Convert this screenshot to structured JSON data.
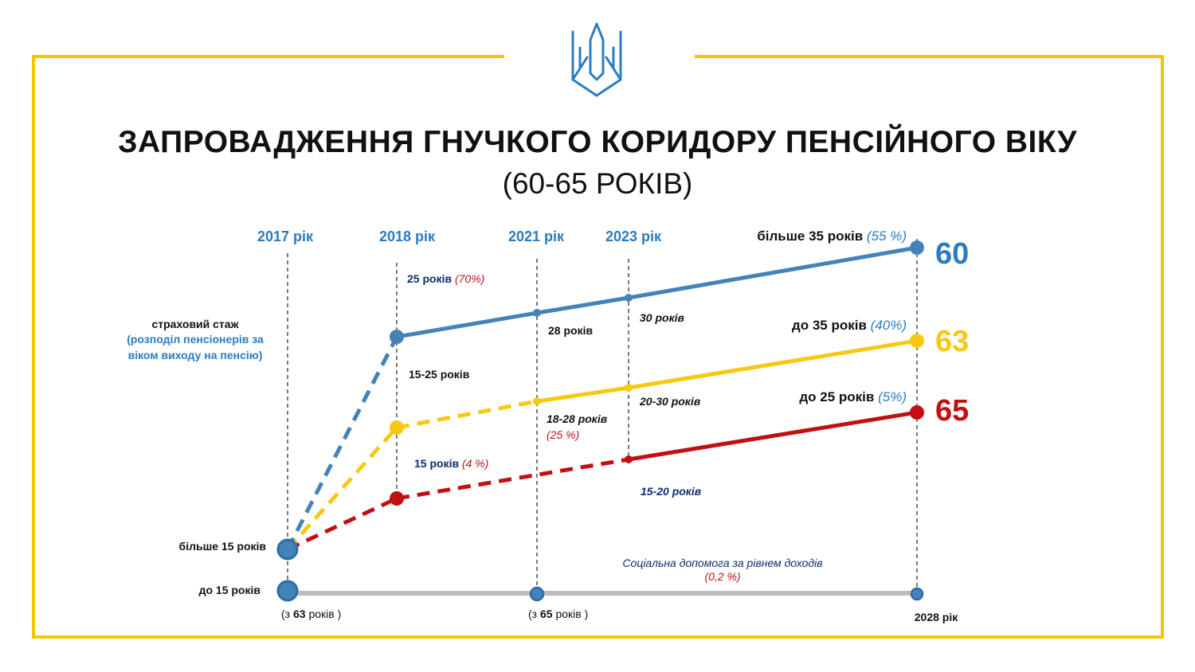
{
  "header": {
    "title": "ЗАПРОВАДЖЕННЯ ГНУЧКОГО КОРИДОРУ ПЕНСІЙНОГО ВІКУ",
    "subtitle": "(60-65 РОКІВ)",
    "emblem_icon": "trident-icon"
  },
  "colors": {
    "frame": "#F5C400",
    "blue": "#4383BA",
    "blue_dark": "#2F6BA4",
    "yellow": "#F8C813",
    "red": "#C10F12",
    "gray": "#BDBDBD",
    "navy": "#0E2D6E",
    "label_blue": "#2A7CC1"
  },
  "years": [
    {
      "label": "2017 рік",
      "year": 2017
    },
    {
      "label": "2018 рік",
      "year": 2018
    },
    {
      "label": "2021 рік",
      "year": 2021
    },
    {
      "label": "2023 рік",
      "year": 2023
    }
  ],
  "end_year_label": "2028 рік",
  "left_labels": {
    "insurance": "страховий стаж",
    "insurance_note": "(розподіл пенсіонерів за віком виходу на пенсію)",
    "more15": "більше 15 років",
    "upto15": "до 15 років"
  },
  "lines": [
    {
      "name": "60",
      "age": "60",
      "color_key": "blue",
      "end_label": "більше 35 років",
      "end_pct": "(55 %)",
      "points": [
        {
          "year": 2017,
          "label": "",
          "pct": ""
        },
        {
          "year": 2018,
          "label": "25 років",
          "pct": "(70%)"
        },
        {
          "year": 2021,
          "label": "28 років",
          "pct": ""
        },
        {
          "year": 2023,
          "label": "30 років",
          "pct": ""
        },
        {
          "year": 2028,
          "label": "",
          "pct": ""
        }
      ]
    },
    {
      "name": "63",
      "age": "63",
      "color_key": "yellow",
      "end_label": "до 35 років",
      "end_pct": "(40%)",
      "points": [
        {
          "year": 2017,
          "label": "",
          "pct": ""
        },
        {
          "year": 2018,
          "label": "15-25 років",
          "pct": ""
        },
        {
          "year": 2021,
          "label": "18-28 років",
          "pct": "(25 %)"
        },
        {
          "year": 2023,
          "label": "20-30 років",
          "pct": ""
        },
        {
          "year": 2028,
          "label": "",
          "pct": ""
        }
      ]
    },
    {
      "name": "65",
      "age": "65",
      "color_key": "red",
      "end_label": "до 25 років",
      "end_pct": "(5%)",
      "points": [
        {
          "year": 2017,
          "label": "",
          "pct": ""
        },
        {
          "year": 2018,
          "label": "15 років",
          "pct": "(4 %)"
        },
        {
          "year": 2023,
          "label": "15-20 років",
          "pct": ""
        },
        {
          "year": 2028,
          "label": "",
          "pct": ""
        }
      ]
    }
  ],
  "social": {
    "label": "Соціальна допомога за рівнем доходів",
    "pct": "(0,2 %)",
    "from63_prefix": "(з ",
    "from63_value": "63",
    "from63_suffix": " років )",
    "from65_prefix": "(з ",
    "from65_value": "65",
    "from65_suffix": " років )"
  }
}
